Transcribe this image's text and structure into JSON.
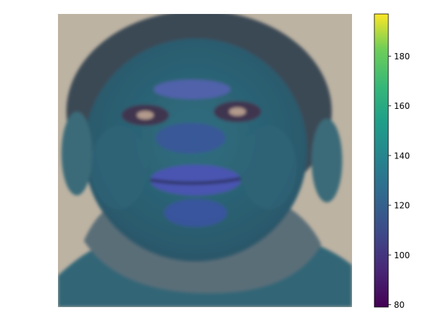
{
  "chart_data": {
    "type": "heatmap",
    "image_description_subject": "face",
    "title": "",
    "xlabel": "",
    "ylabel": "",
    "axes_visible": false,
    "colormap": "viridis",
    "colorbar": {
      "vmin": 79,
      "vmax": 197,
      "ticks": [
        80,
        100,
        120,
        140,
        160,
        180
      ],
      "tick_labels": [
        "80",
        "100",
        "120",
        "140",
        "160",
        "180"
      ],
      "location": "right"
    }
  },
  "colors": {
    "background": "#bdb3a3",
    "face": "#2f6a7a",
    "face_shadow": "#2c5266",
    "hair": "#3a4a55",
    "neck": "#5a6e78",
    "shirt": "#306677",
    "highlight": "#4a56b0"
  }
}
